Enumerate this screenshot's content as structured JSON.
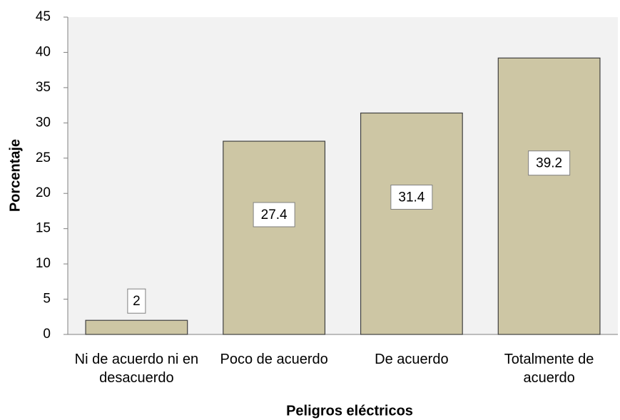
{
  "chart_data": {
    "type": "bar",
    "x_label": "Peligros eléctricos",
    "y_label": "Porcentaje",
    "categories": [
      "Ni de acuerdo ni en desacuerdo",
      "Poco de acuerdo",
      "De acuerdo",
      "Totalmente de acuerdo"
    ],
    "values": [
      2,
      27.4,
      31.4,
      39.2
    ],
    "color": "#cdc6a4",
    "ylim": [
      0,
      45
    ],
    "yticks": [
      0,
      5,
      10,
      15,
      20,
      25,
      30,
      35,
      40,
      45
    ],
    "grid": false
  }
}
